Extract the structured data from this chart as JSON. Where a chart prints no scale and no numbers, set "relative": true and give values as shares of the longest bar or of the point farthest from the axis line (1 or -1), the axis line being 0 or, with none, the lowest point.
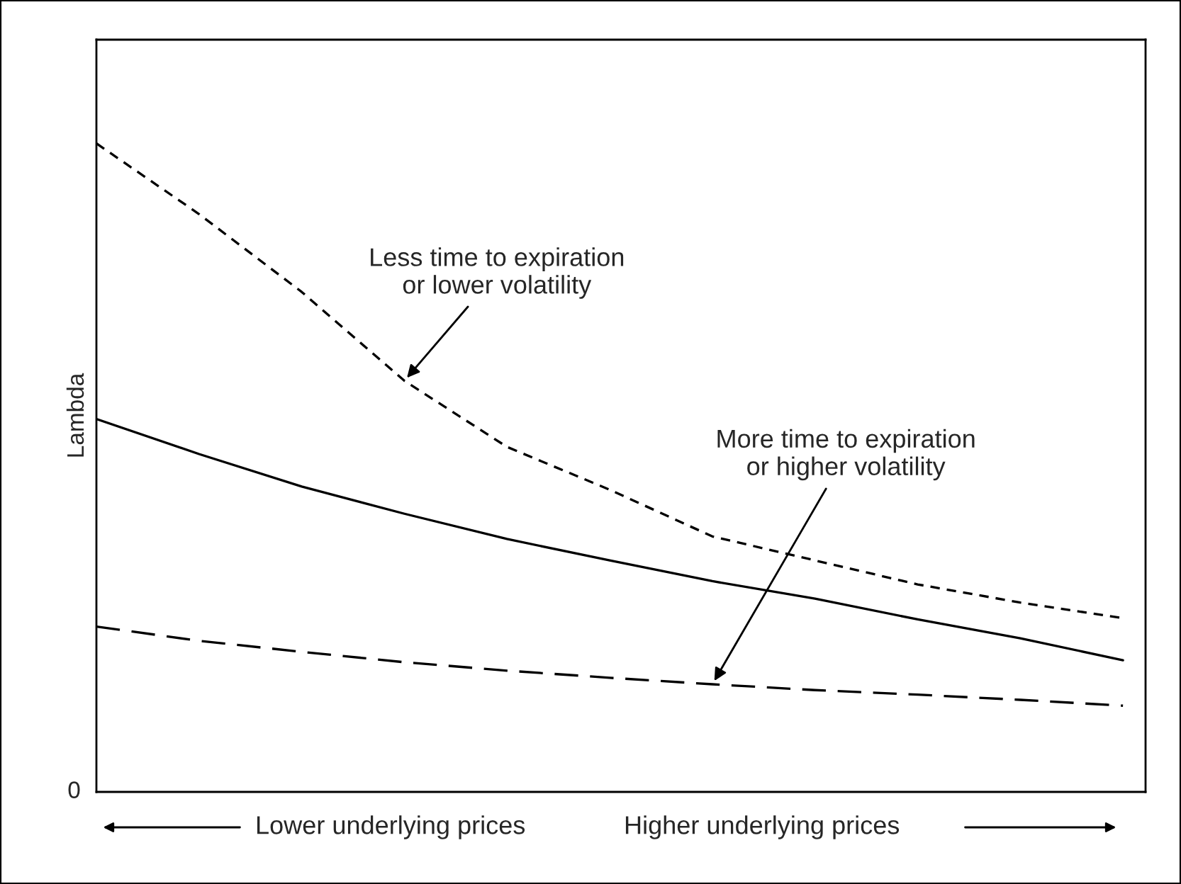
{
  "chart_data": {
    "type": "line",
    "relative": true,
    "ylabel": "Lambda",
    "categories": [
      null,
      null,
      null,
      null,
      null,
      null,
      null,
      null,
      null,
      null,
      null
    ],
    "series": [
      {
        "color": "#000000",
        "line_style": "dotted",
        "values": [
          1,
          0.891,
          0.771,
          0.634,
          0.532,
          0.466,
          0.394,
          0.357,
          0.32,
          0.292,
          0.268
        ]
      },
      {
        "color": "#000000",
        "line_style": "solid",
        "values": [
          0.575,
          0.521,
          0.471,
          0.429,
          0.39,
          0.357,
          0.325,
          0.298,
          0.266,
          0.237,
          0.203
        ]
      },
      {
        "color": "#000000",
        "line_style": "dashed",
        "values": [
          0.255,
          0.233,
          0.216,
          0.2,
          0.187,
          0.176,
          0.166,
          0.157,
          0.15,
          0.142,
          0.133
        ]
      }
    ],
    "annotations": [
      "0",
      "Lower underlying prices",
      "Higher underlying prices",
      "Less time to expiration\nor lower volatility",
      "More time to expiration\nor higher volatility"
    ],
    "grid": false,
    "legend": false,
    "marker": "none"
  }
}
